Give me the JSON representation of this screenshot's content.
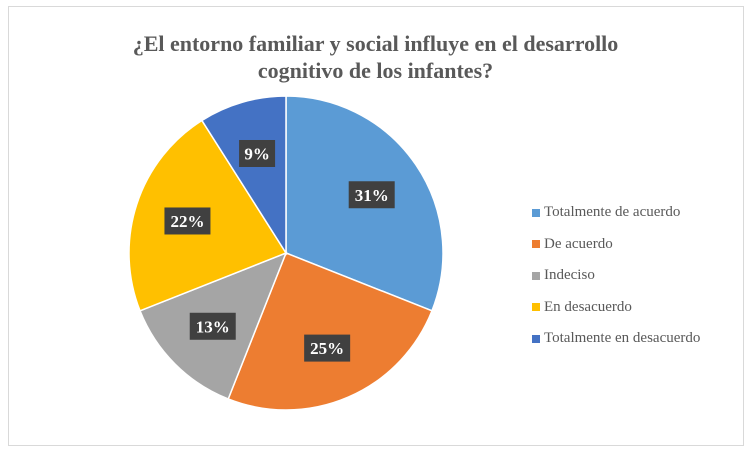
{
  "chart_data": {
    "type": "pie",
    "title": "¿El entorno familiar y social influye en el desarrollo cognitivo de los infantes?",
    "title_lines": [
      "¿El entorno familiar y social influye en el desarrollo",
      "cognitivo de los infantes?"
    ],
    "categories": [
      "Totalmente de acuerdo",
      "De acuerdo",
      "Indeciso",
      "En desacuerdo",
      "Totalmente en desacuerdo"
    ],
    "values": [
      31,
      25,
      13,
      22,
      9
    ],
    "labels": [
      "31%",
      "25%",
      "13%",
      "22%",
      "9%"
    ],
    "colors": [
      "#5b9bd5",
      "#ed7d31",
      "#a5a5a5",
      "#ffc000",
      "#4472c4"
    ],
    "legend_position": "right"
  }
}
